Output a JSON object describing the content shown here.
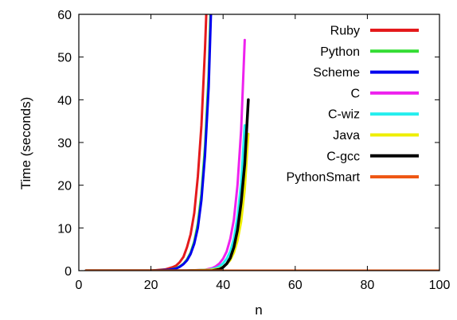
{
  "chart_data": {
    "type": "line",
    "title": "",
    "xlabel": "n",
    "ylabel": "Time (seconds)",
    "xlim": [
      0,
      100
    ],
    "ylim": [
      0,
      60
    ],
    "xticks": [
      0,
      20,
      40,
      60,
      80,
      100
    ],
    "yticks": [
      0,
      10,
      20,
      30,
      40,
      50,
      60
    ],
    "grid": false,
    "legend_position": "top-right",
    "series": [
      {
        "name": "Ruby",
        "color": "#e41a1c",
        "x": [
          2,
          20,
          24,
          26,
          27,
          28,
          29,
          30,
          31,
          32,
          33,
          34,
          35,
          36
        ],
        "y": [
          0,
          0,
          0.3,
          0.8,
          1.2,
          2.0,
          3.2,
          5.5,
          8.5,
          13.5,
          22,
          34,
          52,
          75
        ]
      },
      {
        "name": "Python",
        "color": "#33dd33",
        "x": [
          2,
          20,
          25,
          27,
          28,
          29,
          30,
          31,
          32,
          33,
          34,
          35,
          36,
          37
        ],
        "y": [
          0,
          0,
          0.2,
          0.6,
          1.0,
          1.6,
          2.6,
          4.2,
          6.8,
          11,
          18,
          29,
          46,
          74
        ]
      },
      {
        "name": "Scheme",
        "color": "#0000ee",
        "x": [
          2,
          20,
          25,
          27,
          28,
          29,
          30,
          31,
          32,
          33,
          34,
          35,
          36,
          37
        ],
        "y": [
          0,
          0,
          0.2,
          0.5,
          0.9,
          1.5,
          2.4,
          3.9,
          6.3,
          10,
          16.5,
          27,
          43,
          70
        ]
      },
      {
        "name": "C",
        "color": "#ee22ee",
        "x": [
          2,
          30,
          35,
          37,
          38,
          39,
          40,
          41,
          42,
          43,
          44,
          45,
          46
        ],
        "y": [
          0,
          0,
          0.2,
          0.6,
          1.0,
          1.7,
          2.8,
          4.5,
          7.5,
          12,
          20,
          33,
          54
        ]
      },
      {
        "name": "C-wiz",
        "color": "#22eeee",
        "x": [
          2,
          30,
          36,
          38,
          39,
          40,
          41,
          42,
          43,
          44,
          45,
          46
        ],
        "y": [
          0,
          0,
          0.2,
          0.6,
          1.0,
          1.7,
          2.8,
          4.5,
          7.5,
          12.5,
          20.5,
          34
        ]
      },
      {
        "name": "Java",
        "color": "#eeee00",
        "x": [
          2,
          30,
          37,
          39,
          40,
          41,
          42,
          43,
          44,
          45,
          46,
          47
        ],
        "y": [
          0,
          0,
          0.2,
          0.5,
          0.9,
          1.5,
          2.5,
          4.2,
          7,
          11.5,
          19,
          32
        ]
      },
      {
        "name": "C-gcc",
        "color": "#000000",
        "x": [
          2,
          37,
          39,
          40,
          41,
          42,
          43,
          44,
          45,
          46,
          47
        ],
        "y": [
          0,
          0,
          0.3,
          0.8,
          1.6,
          3.0,
          5.5,
          9.5,
          16,
          25,
          40
        ]
      },
      {
        "name": "PythonSmart",
        "color": "#ee5511",
        "x": [
          2,
          100
        ],
        "y": [
          0,
          0
        ]
      }
    ]
  }
}
